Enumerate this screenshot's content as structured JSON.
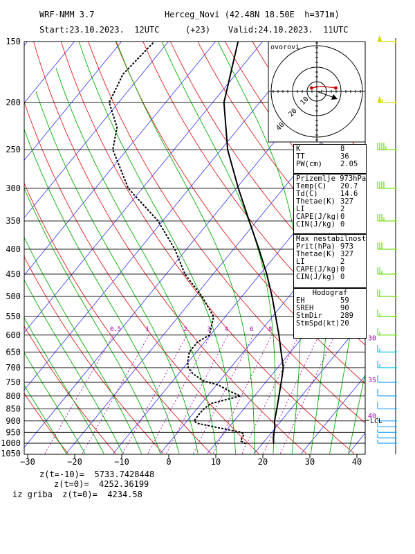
{
  "header": {
    "model": "WRF-NMM 3.7",
    "station": "Herceg_Novi (42.48N 18.50E  h=371m)",
    "start": "Start:23.10.2023.  12UTC",
    "lead": "(+23)",
    "valid": "Valid:24.10.2023.  11UTC"
  },
  "colors": {
    "temp": "#000000",
    "dewpoint": "#000000",
    "isotherm": "#3030ff",
    "dry_adiabat": "#e00000",
    "moist_adiabat": "#00b000",
    "mixing_ratio": "#b000b0",
    "wind_low": "#00c0e0",
    "wind_high": "#d8d800",
    "wind_mid": "#66dd00"
  },
  "chart_data": {
    "type": "skew-t",
    "pressure_levels": [
      150,
      200,
      250,
      300,
      350,
      400,
      450,
      500,
      550,
      600,
      650,
      700,
      750,
      800,
      850,
      900,
      950,
      1000,
      1050
    ],
    "x_ticks": [
      -30,
      -20,
      -10,
      0,
      10,
      20,
      30,
      40
    ],
    "mixing_ratio_labels": [
      "0.5",
      "1",
      "2",
      "3",
      "4",
      "6",
      "8"
    ],
    "temperature": [
      [
        1003,
        22.5
      ],
      [
        1000,
        22.3
      ],
      [
        975,
        21.3
      ],
      [
        950,
        20.5
      ],
      [
        925,
        19.7
      ],
      [
        900,
        18.6
      ],
      [
        850,
        17.0
      ],
      [
        800,
        15.2
      ],
      [
        750,
        13.3
      ],
      [
        700,
        11.2
      ],
      [
        650,
        8.0
      ],
      [
        600,
        4.6
      ],
      [
        550,
        0.7
      ],
      [
        500,
        -3.6
      ],
      [
        450,
        -8.6
      ],
      [
        400,
        -14.6
      ],
      [
        350,
        -21.6
      ],
      [
        300,
        -29.6
      ],
      [
        250,
        -38.6
      ],
      [
        200,
        -47.6
      ],
      [
        150,
        -55.2
      ]
    ],
    "dewpoint": [
      [
        1003,
        16.5
      ],
      [
        990,
        15.0
      ],
      [
        975,
        14.6
      ],
      [
        960,
        14.5
      ],
      [
        950,
        13.5
      ],
      [
        930,
        8.0
      ],
      [
        910,
        2.5
      ],
      [
        900,
        1.5
      ],
      [
        870,
        1.4
      ],
      [
        850,
        1.5
      ],
      [
        830,
        2.0
      ],
      [
        800,
        7.0
      ],
      [
        780,
        3.5
      ],
      [
        760,
        0.5
      ],
      [
        745,
        -3.5
      ],
      [
        720,
        -7.0
      ],
      [
        700,
        -9.0
      ],
      [
        680,
        -10.2
      ],
      [
        650,
        -11.5
      ],
      [
        620,
        -11.5
      ],
      [
        600,
        -10.2
      ],
      [
        550,
        -12.5
      ],
      [
        500,
        -18.5
      ],
      [
        450,
        -26.0
      ],
      [
        400,
        -32.5
      ],
      [
        350,
        -41.0
      ],
      [
        300,
        -53.0
      ],
      [
        250,
        -63.0
      ],
      [
        225,
        -66.0
      ],
      [
        200,
        -72.0
      ],
      [
        175,
        -74.0
      ],
      [
        150,
        -73.0
      ]
    ],
    "wind_barbs_kt": [
      [
        150,
        50
      ],
      [
        200,
        55
      ],
      [
        250,
        45
      ],
      [
        300,
        40
      ],
      [
        350,
        35
      ],
      [
        400,
        30
      ],
      [
        450,
        25
      ],
      [
        500,
        20
      ],
      [
        550,
        15
      ],
      [
        600,
        15
      ],
      [
        650,
        15
      ],
      [
        700,
        15
      ],
      [
        750,
        10
      ],
      [
        800,
        10
      ],
      [
        850,
        10
      ],
      [
        900,
        5
      ],
      [
        925,
        5
      ],
      [
        950,
        5
      ],
      [
        975,
        5
      ],
      [
        1000,
        5
      ]
    ],
    "right_labels": [
      {
        "p": 607,
        "text": "30"
      },
      {
        "p": 740,
        "text": "35"
      },
      {
        "p": 878,
        "text": "40"
      },
      {
        "p": 898,
        "text": "LCL"
      }
    ],
    "hodograph": {
      "title": "ovorovi",
      "ring_labels": [
        "10",
        "20",
        "40"
      ],
      "points": [
        [
          -3,
          2
        ],
        [
          3,
          3
        ],
        [
          11,
          2
        ]
      ]
    }
  },
  "indices": [
    {
      "label": "K",
      "value": "8"
    },
    {
      "label": "TT",
      "value": "36"
    },
    {
      "label": "PW(cm)",
      "value": "2.05"
    }
  ],
  "surface": {
    "title": "Prizemlje 973hPa",
    "rows": [
      {
        "label": "Temp(C)",
        "value": "20.7"
      },
      {
        "label": "Td(C)",
        "value": "14.6"
      },
      {
        "label": "Thetae(K)",
        "value": "327"
      },
      {
        "label": "LI",
        "value": "2"
      },
      {
        "label": "CAPE(J/kg)",
        "value": "0"
      },
      {
        "label": "CIN(J/kg)",
        "value": "0"
      }
    ]
  },
  "maxinst": {
    "title": "Max nestabilnost",
    "rows": [
      {
        "label": "Prit(hPa)",
        "value": "973"
      },
      {
        "label": "Thetae(K)",
        "value": "327"
      },
      {
        "label": "LI",
        "value": "2"
      },
      {
        "label": "CAPE(J/kg)",
        "value": "0"
      },
      {
        "label": "CIN(J/kg)",
        "value": "0"
      }
    ]
  },
  "hodo_box": {
    "title": "Hodograf",
    "rows": [
      {
        "label": "EH",
        "value": "59"
      },
      {
        "label": "SREH",
        "value": "90"
      },
      {
        "label": "StmDir",
        "value": "289"
      },
      {
        "label": "StmSpd(kt)",
        "value": "20"
      }
    ]
  },
  "footer": {
    "line1": "z(t=-10)=  5733.7428448",
    "line2": "z(t=0)=  4252.36199",
    "line3": "iz griba  z(t=0)=  4234.58"
  }
}
